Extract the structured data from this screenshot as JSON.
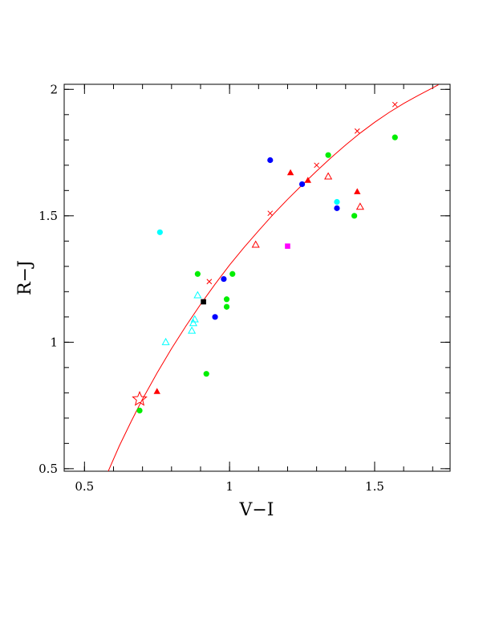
{
  "chart_data": {
    "type": "scatter",
    "title": "",
    "xlabel": "V−I",
    "ylabel": "R−J",
    "xlim": [
      0.43,
      1.76
    ],
    "ylim": [
      0.49,
      2.02
    ],
    "x_ticks": [
      {
        "value": 0.5,
        "label": "0.5"
      },
      {
        "value": 1.0,
        "label": "1"
      },
      {
        "value": 1.5,
        "label": "1.5"
      }
    ],
    "y_ticks": [
      {
        "value": 0.5,
        "label": "0.5"
      },
      {
        "value": 1.0,
        "label": "1"
      },
      {
        "value": 1.5,
        "label": "1.5"
      },
      {
        "value": 2.0,
        "label": "2"
      }
    ],
    "x_minor_step": 0.1,
    "y_minor_step": 0.1,
    "grid": false,
    "colors": {
      "curve": "#ff0000",
      "green": "#00ee00",
      "blue": "#0000ff",
      "cyan": "#00ffff",
      "red": "#ff0000",
      "magenta": "#ff00ff",
      "black": "#000000",
      "axis": "#000000"
    },
    "curve": {
      "x": [
        0.58,
        0.62,
        0.66,
        0.7,
        0.75,
        0.8,
        0.85,
        0.9,
        0.95,
        1.0,
        1.05,
        1.1,
        1.15,
        1.2,
        1.25,
        1.3,
        1.35,
        1.4,
        1.45,
        1.5,
        1.55,
        1.6,
        1.65,
        1.7,
        1.72
      ],
      "y": [
        0.485,
        0.59,
        0.685,
        0.775,
        0.878,
        0.975,
        1.065,
        1.15,
        1.23,
        1.305,
        1.375,
        1.441,
        1.505,
        1.565,
        1.622,
        1.677,
        1.73,
        1.78,
        1.827,
        1.87,
        1.909,
        1.944,
        1.976,
        2.006,
        2.018
      ]
    },
    "curve_markers": {
      "x": [
        0.93,
        1.14,
        1.3,
        1.44,
        1.57
      ],
      "y": [
        1.24,
        1.51,
        1.7,
        1.835,
        1.94
      ]
    },
    "highlight_star": {
      "x": 0.69,
      "y": 0.775
    },
    "series": [
      {
        "color": "green",
        "marker": "circle",
        "x": [
          0.69,
          0.89,
          0.92,
          0.99,
          0.99,
          1.01,
          1.34,
          1.43,
          1.57
        ],
        "y": [
          0.73,
          1.27,
          0.875,
          1.14,
          1.17,
          1.27,
          1.74,
          1.5,
          1.81
        ]
      },
      {
        "color": "blue",
        "marker": "circle",
        "x": [
          0.95,
          0.98,
          1.14,
          1.25,
          1.37
        ],
        "y": [
          1.1,
          1.25,
          1.72,
          1.625,
          1.53
        ]
      },
      {
        "color": "cyan",
        "marker": "circle",
        "x": [
          0.76,
          1.37
        ],
        "y": [
          1.435,
          1.555
        ]
      },
      {
        "color": "red",
        "marker": "triangle",
        "x": [
          0.75,
          1.21,
          1.27,
          1.44
        ],
        "y": [
          0.805,
          1.67,
          1.64,
          1.595
        ]
      },
      {
        "color": "red",
        "marker": "triangle-open",
        "x": [
          1.09,
          1.34,
          1.45
        ],
        "y": [
          1.385,
          1.655,
          1.535
        ]
      },
      {
        "color": "cyan",
        "marker": "triangle-open",
        "x": [
          0.78,
          0.87,
          0.875,
          0.88,
          0.89
        ],
        "y": [
          1.0,
          1.045,
          1.075,
          1.09,
          1.185
        ]
      },
      {
        "color": "magenta",
        "marker": "square",
        "x": [
          1.2
        ],
        "y": [
          1.38
        ]
      },
      {
        "color": "black",
        "marker": "square",
        "x": [
          0.91
        ],
        "y": [
          1.16
        ]
      }
    ]
  }
}
